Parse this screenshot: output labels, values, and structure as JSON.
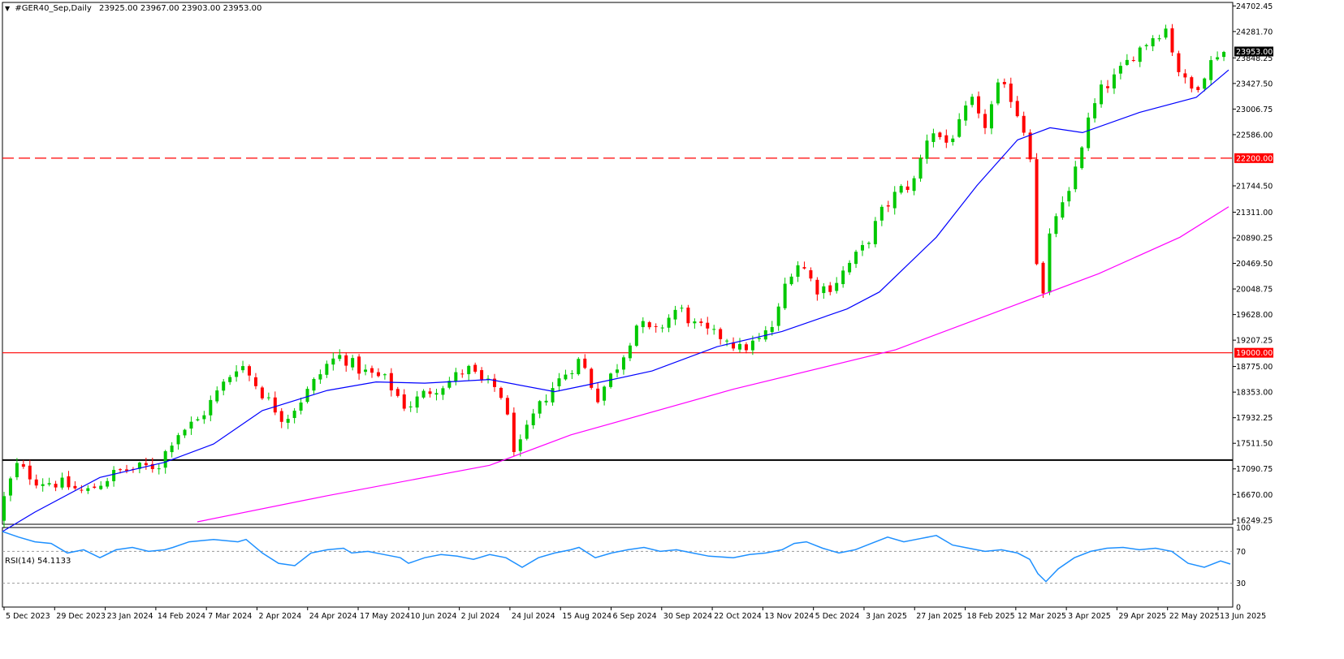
{
  "header": {
    "symbol": "#GER40_Sep,Daily",
    "ohlc": "23925.00 23967.00 23903.00 23953.00",
    "collapse_icon": "triangle-down-icon"
  },
  "rsi": {
    "label": "RSI(14) 54.1133",
    "axis_labels": [
      "100",
      "70",
      "30",
      "0"
    ],
    "levels": [
      70,
      30
    ],
    "color": "#1E90FF"
  },
  "chart_data": {
    "type": "candlestick",
    "title": "#GER40_Sep,Daily",
    "price_axis_labels": [
      "24702.45",
      "24281.70",
      "23848.25",
      "23427.50",
      "23006.75",
      "22586.00",
      "21744.50",
      "21311.00",
      "20890.25",
      "20469.50",
      "20048.75",
      "19628.00",
      "19207.25",
      "18775.00",
      "18353.00",
      "17932.25",
      "17511.50",
      "17090.75",
      "16670.00",
      "16249.25"
    ],
    "ylim": [
      16180,
      24760
    ],
    "date_labels": [
      "5 Dec 2023",
      "29 Dec 2023",
      "23 Jan 2024",
      "14 Feb 2024",
      "7 Mar 2024",
      "2 Apr 2024",
      "24 Apr 2024",
      "17 May 2024",
      "10 Jun 2024",
      "2 Jul 2024",
      "24 Jul 2024",
      "15 Aug 2024",
      "6 Sep 2024",
      "30 Sep 2024",
      "22 Oct 2024",
      "13 Nov 2024",
      "5 Dec 2024",
      "3 Jan 2025",
      "27 Jan 2025",
      "18 Feb 2025",
      "12 Mar 2025",
      "3 Apr 2025",
      "29 Apr 2025",
      "22 May 2025",
      "13 Jun 2025"
    ],
    "current_price": {
      "value": 23953.0,
      "label": "23953.00"
    },
    "horizontal_lines": [
      {
        "value": 22200.0,
        "label": "22200.00",
        "style": "dashed",
        "color": "#FF0000"
      },
      {
        "value": 19000.0,
        "label": "19000.00",
        "style": "solid",
        "color": "#FF0000"
      },
      {
        "value": 17235,
        "label": "",
        "style": "solid",
        "color": "#000000"
      }
    ],
    "up_color": "#00C800",
    "down_color": "#FF0000",
    "ma_series": [
      {
        "color": "#0000FF",
        "points": [
          [
            0,
            16060
          ],
          [
            40,
            16380
          ],
          [
            120,
            16950
          ],
          [
            200,
            17200
          ],
          [
            260,
            17500
          ],
          [
            320,
            18050
          ],
          [
            400,
            18380
          ],
          [
            460,
            18520
          ],
          [
            520,
            18500
          ],
          [
            600,
            18560
          ],
          [
            680,
            18360
          ],
          [
            720,
            18470
          ],
          [
            800,
            18700
          ],
          [
            880,
            19100
          ],
          [
            960,
            19350
          ],
          [
            1040,
            19720
          ],
          [
            1080,
            20000
          ],
          [
            1150,
            20900
          ],
          [
            1200,
            21750
          ],
          [
            1250,
            22500
          ],
          [
            1290,
            22700
          ],
          [
            1330,
            22620
          ],
          [
            1400,
            22950
          ],
          [
            1470,
            23200
          ],
          [
            1510,
            23650
          ]
        ]
      },
      {
        "color": "#FF00FF",
        "points": [
          [
            240,
            16220
          ],
          [
            400,
            16650
          ],
          [
            600,
            17150
          ],
          [
            700,
            17650
          ],
          [
            900,
            18400
          ],
          [
            1100,
            19050
          ],
          [
            1250,
            19800
          ],
          [
            1350,
            20300
          ],
          [
            1450,
            20900
          ],
          [
            1510,
            21400
          ]
        ]
      }
    ],
    "price_path": [
      [
        0,
        16250
      ],
      [
        25,
        17150
      ],
      [
        50,
        16900
      ],
      [
        80,
        16850
      ],
      [
        110,
        16700
      ],
      [
        150,
        17050
      ],
      [
        200,
        17150
      ],
      [
        220,
        17650
      ],
      [
        250,
        17900
      ],
      [
        270,
        18300
      ],
      [
        300,
        18850
      ],
      [
        330,
        18300
      ],
      [
        355,
        17900
      ],
      [
        380,
        18300
      ],
      [
        410,
        18850
      ],
      [
        425,
        18950
      ],
      [
        450,
        18700
      ],
      [
        480,
        18550
      ],
      [
        505,
        18100
      ],
      [
        530,
        18350
      ],
      [
        560,
        18550
      ],
      [
        580,
        18750
      ],
      [
        600,
        18500
      ],
      [
        620,
        18400
      ],
      [
        635,
        17650
      ],
      [
        640,
        17300
      ],
      [
        660,
        17900
      ],
      [
        680,
        18350
      ],
      [
        700,
        18650
      ],
      [
        720,
        18900
      ],
      [
        740,
        18250
      ],
      [
        770,
        18900
      ],
      [
        790,
        19500
      ],
      [
        810,
        19300
      ],
      [
        840,
        19750
      ],
      [
        860,
        19450
      ],
      [
        880,
        19300
      ],
      [
        900,
        19250
      ],
      [
        915,
        19050
      ],
      [
        940,
        19200
      ],
      [
        960,
        19500
      ],
      [
        975,
        20300
      ],
      [
        990,
        20500
      ],
      [
        1010,
        20050
      ],
      [
        1030,
        20100
      ],
      [
        1050,
        20450
      ],
      [
        1070,
        20750
      ],
      [
        1090,
        21300
      ],
      [
        1110,
        21650
      ],
      [
        1130,
        21800
      ],
      [
        1150,
        22700
      ],
      [
        1170,
        22450
      ],
      [
        1190,
        22800
      ],
      [
        1200,
        23200
      ],
      [
        1215,
        22650
      ],
      [
        1235,
        23400
      ],
      [
        1250,
        23200
      ],
      [
        1265,
        22700
      ],
      [
        1275,
        22200
      ],
      [
        1282,
        20400
      ],
      [
        1290,
        19900
      ],
      [
        1300,
        21200
      ],
      [
        1320,
        21500
      ],
      [
        1330,
        22100
      ],
      [
        1345,
        22800
      ],
      [
        1360,
        23300
      ],
      [
        1380,
        23550
      ],
      [
        1400,
        23900
      ],
      [
        1420,
        24150
      ],
      [
        1440,
        24350
      ],
      [
        1460,
        23500
      ],
      [
        1475,
        23300
      ],
      [
        1490,
        23650
      ],
      [
        1505,
        23950
      ],
      [
        1512,
        23953
      ]
    ],
    "candle_count": 190,
    "rsi_series": [
      [
        0,
        95
      ],
      [
        20,
        88
      ],
      [
        40,
        82
      ],
      [
        60,
        80
      ],
      [
        80,
        68
      ],
      [
        100,
        72
      ],
      [
        120,
        62
      ],
      [
        140,
        72
      ],
      [
        160,
        75
      ],
      [
        180,
        70
      ],
      [
        200,
        72
      ],
      [
        210,
        75
      ],
      [
        230,
        82
      ],
      [
        260,
        85
      ],
      [
        290,
        82
      ],
      [
        300,
        85
      ],
      [
        320,
        68
      ],
      [
        340,
        55
      ],
      [
        360,
        52
      ],
      [
        380,
        68
      ],
      [
        400,
        72
      ],
      [
        420,
        74
      ],
      [
        430,
        68
      ],
      [
        450,
        70
      ],
      [
        470,
        66
      ],
      [
        490,
        62
      ],
      [
        500,
        55
      ],
      [
        520,
        62
      ],
      [
        540,
        66
      ],
      [
        560,
        64
      ],
      [
        580,
        60
      ],
      [
        600,
        66
      ],
      [
        620,
        62
      ],
      [
        640,
        50
      ],
      [
        660,
        62
      ],
      [
        680,
        68
      ],
      [
        700,
        72
      ],
      [
        710,
        75
      ],
      [
        730,
        62
      ],
      [
        750,
        68
      ],
      [
        770,
        72
      ],
      [
        790,
        75
      ],
      [
        810,
        70
      ],
      [
        830,
        72
      ],
      [
        850,
        68
      ],
      [
        870,
        64
      ],
      [
        900,
        62
      ],
      [
        920,
        66
      ],
      [
        940,
        68
      ],
      [
        960,
        72
      ],
      [
        975,
        80
      ],
      [
        990,
        82
      ],
      [
        1010,
        74
      ],
      [
        1030,
        68
      ],
      [
        1050,
        72
      ],
      [
        1070,
        80
      ],
      [
        1090,
        88
      ],
      [
        1110,
        82
      ],
      [
        1130,
        86
      ],
      [
        1150,
        90
      ],
      [
        1170,
        78
      ],
      [
        1190,
        74
      ],
      [
        1210,
        70
      ],
      [
        1230,
        72
      ],
      [
        1250,
        68
      ],
      [
        1265,
        60
      ],
      [
        1275,
        42
      ],
      [
        1285,
        32
      ],
      [
        1300,
        48
      ],
      [
        1320,
        62
      ],
      [
        1340,
        70
      ],
      [
        1360,
        74
      ],
      [
        1380,
        75
      ],
      [
        1400,
        72
      ],
      [
        1420,
        74
      ],
      [
        1440,
        70
      ],
      [
        1460,
        55
      ],
      [
        1480,
        50
      ],
      [
        1500,
        58
      ],
      [
        1512,
        54.11
      ]
    ]
  }
}
